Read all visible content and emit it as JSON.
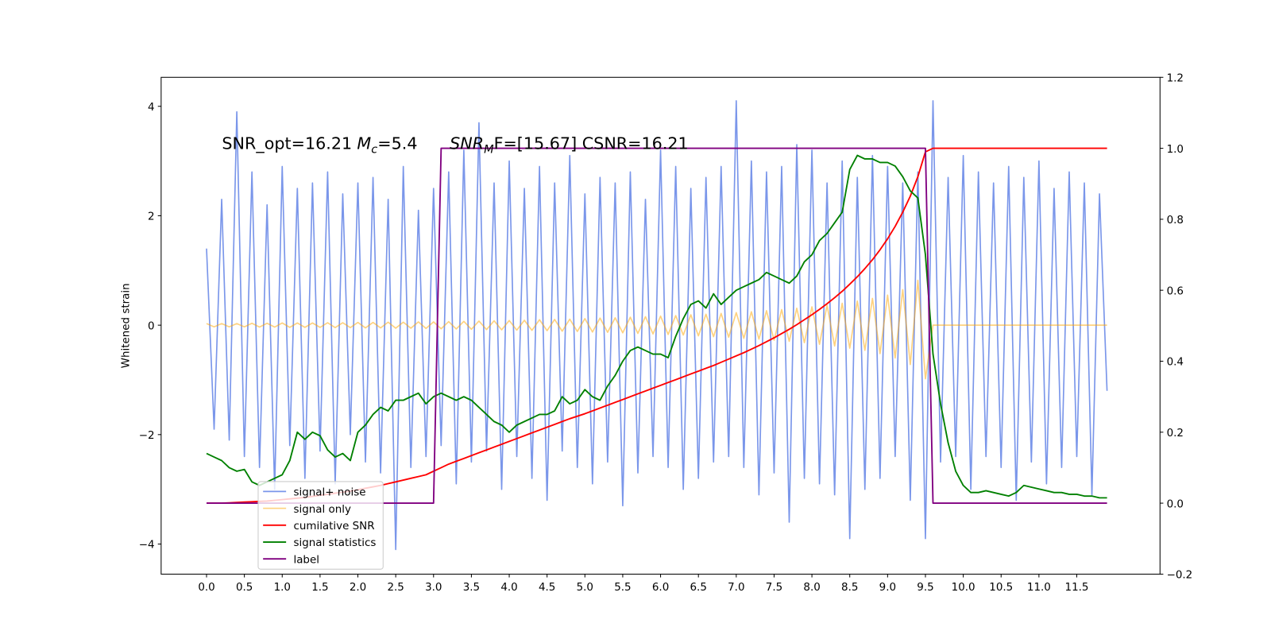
{
  "chart_data": {
    "type": "line",
    "y_label": "Whitened strain",
    "annotations": [
      {
        "parts": [
          "SNR_opt=16.21",
          "M",
          "c",
          "=5.4"
        ]
      },
      {
        "parts": [
          "SNR",
          "M",
          "F=[15.67] CSNR=16.21"
        ]
      }
    ],
    "legend": "lower left",
    "xlim": [
      -0.6,
      12.6
    ],
    "ylim": [
      -4.55,
      4.53
    ],
    "y2lim": [
      -0.2,
      1.2
    ],
    "xticks": [
      {
        "value": 0,
        "label": "0.0"
      },
      0.5,
      {
        "value": 1,
        "label": "1.0"
      },
      1.5,
      {
        "value": 2,
        "label": "2.0"
      },
      2.5,
      {
        "value": 3,
        "label": "3.0"
      },
      3.5,
      {
        "value": 4,
        "label": "4.0"
      },
      4.5,
      {
        "value": 5,
        "label": "5.0"
      },
      5.5,
      {
        "value": 6,
        "label": "6.0"
      },
      6.5,
      {
        "value": 7,
        "label": "7.0"
      },
      7.5,
      {
        "value": 8,
        "label": "8.0"
      },
      8.5,
      {
        "value": 9,
        "label": "9.0"
      },
      9.5,
      {
        "value": 10,
        "label": "10.0"
      },
      10.5,
      {
        "value": 11,
        "label": "11.0"
      },
      11.5
    ],
    "yticks": [
      {
        "value": -4,
        "label": "−4"
      },
      {
        "value": -2,
        "label": "−2"
      },
      0,
      2,
      4
    ],
    "y2ticks": [
      {
        "value": -0.2,
        "label": "−0.2"
      },
      {
        "value": 0,
        "label": "0.0"
      },
      0.2,
      0.4,
      0.6,
      0.8,
      {
        "value": 1,
        "label": "1.0"
      },
      1.2
    ],
    "x": [
      0,
      0.1,
      0.2,
      0.3,
      0.4,
      0.5,
      0.6,
      0.7,
      0.8,
      0.9,
      1,
      1.1,
      1.2,
      1.3,
      1.4,
      1.5,
      1.6,
      1.7,
      1.8,
      1.9,
      2,
      2.1,
      2.2,
      2.3,
      2.4,
      2.5,
      2.6,
      2.7,
      2.8,
      2.9,
      3,
      3.1,
      3.2,
      3.3,
      3.4,
      3.5,
      3.6,
      3.7,
      3.8,
      3.9,
      4,
      4.1,
      4.2,
      4.3,
      4.4,
      4.5,
      4.6,
      4.7,
      4.8,
      4.9,
      5,
      5.1,
      5.2,
      5.3,
      5.4,
      5.5,
      5.6,
      5.7,
      5.8,
      5.9,
      6,
      6.1,
      6.2,
      6.3,
      6.4,
      6.5,
      6.6,
      6.7,
      6.8,
      6.9,
      7,
      7.1,
      7.2,
      7.3,
      7.4,
      7.5,
      7.6,
      7.7,
      7.8,
      7.9,
      8,
      8.1,
      8.2,
      8.3,
      8.4,
      8.5,
      8.6,
      8.7,
      8.8,
      8.9,
      9,
      9.1,
      9.2,
      9.3,
      9.4,
      9.5,
      9.6,
      9.7,
      9.8,
      9.9,
      10,
      10.1,
      10.2,
      10.3,
      10.4,
      10.5,
      10.6,
      10.7,
      10.8,
      10.9,
      11,
      11.1,
      11.2,
      11.3,
      11.4,
      11.5,
      11.6,
      11.7,
      11.8,
      11.9
    ],
    "series": [
      {
        "name": "signal+ noise",
        "color": "#4169e1",
        "opacity": 0.7,
        "width": 1.6,
        "values": [
          1.4,
          -1.9,
          2.3,
          -2.1,
          3.9,
          -2.4,
          2.8,
          -2.6,
          2.2,
          -3.0,
          2.9,
          -2.2,
          2.5,
          -2.8,
          2.6,
          -2.3,
          2.8,
          -2.9,
          2.4,
          -2.0,
          2.6,
          -2.5,
          2.7,
          -2.7,
          2.3,
          -4.1,
          2.9,
          -2.6,
          2.1,
          -2.4,
          2.5,
          -2.2,
          2.8,
          -2.9,
          3.2,
          -2.5,
          3.7,
          -2.3,
          2.6,
          -3.0,
          3.0,
          -2.4,
          2.5,
          -2.8,
          2.9,
          -3.2,
          2.6,
          -2.3,
          3.1,
          -2.6,
          2.4,
          -2.9,
          2.7,
          -2.5,
          2.6,
          -3.3,
          2.8,
          -2.7,
          2.3,
          -2.4,
          3.2,
          -2.6,
          2.9,
          -3.0,
          2.5,
          -2.8,
          2.7,
          -2.5,
          2.9,
          -2.4,
          4.1,
          -2.6,
          3.0,
          -3.1,
          2.8,
          -2.7,
          2.9,
          -3.6,
          3.3,
          -2.8,
          3.2,
          -2.9,
          2.6,
          -3.1,
          3.0,
          -3.9,
          2.7,
          -3.0,
          3.1,
          -2.8,
          2.9,
          -2.4,
          2.6,
          -3.2,
          2.8,
          -3.9,
          4.1,
          -2.5,
          2.7,
          -2.4,
          3.1,
          -3.0,
          2.8,
          -2.4,
          2.6,
          -2.6,
          2.9,
          -3.2,
          2.7,
          -2.5,
          3.0,
          -2.9,
          2.5,
          -2.6,
          2.8,
          -2.4,
          2.6,
          -3.1,
          2.4,
          -1.2
        ]
      },
      {
        "name": "signal only",
        "color": "#ffa500",
        "opacity": 0.5,
        "width": 1.6,
        "values": [
          0.03,
          -0.03,
          0.03,
          -0.03,
          0.03,
          -0.03,
          0.035,
          -0.035,
          0.035,
          -0.035,
          0.04,
          -0.04,
          0.04,
          -0.04,
          0.04,
          -0.04,
          0.045,
          -0.045,
          0.045,
          -0.045,
          0.05,
          -0.05,
          0.05,
          -0.05,
          0.055,
          -0.055,
          0.055,
          -0.055,
          0.06,
          -0.06,
          0.06,
          -0.065,
          0.065,
          -0.07,
          0.07,
          -0.075,
          0.075,
          -0.08,
          0.08,
          -0.085,
          0.085,
          -0.09,
          0.09,
          -0.095,
          0.1,
          -0.1,
          0.105,
          -0.11,
          0.11,
          -0.115,
          0.12,
          -0.125,
          0.13,
          -0.13,
          0.135,
          -0.14,
          0.145,
          -0.15,
          0.155,
          -0.16,
          0.165,
          -0.17,
          0.175,
          -0.18,
          0.19,
          -0.195,
          0.2,
          -0.21,
          0.215,
          -0.22,
          0.23,
          -0.24,
          0.245,
          -0.255,
          0.265,
          -0.275,
          0.285,
          -0.295,
          0.31,
          -0.32,
          0.335,
          -0.35,
          0.365,
          -0.38,
          0.4,
          -0.42,
          0.44,
          -0.46,
          0.49,
          -0.52,
          0.55,
          -0.6,
          0.65,
          -0.72,
          0.82,
          -0.98,
          0,
          0,
          0,
          0,
          0,
          0,
          0,
          0,
          0,
          0,
          0,
          0,
          0,
          0,
          0,
          0,
          0,
          0,
          0,
          0,
          0,
          0,
          0,
          0
        ]
      },
      {
        "name": "cumilative SNR",
        "color": "#ff0000",
        "axis": "y2",
        "opacity": 1,
        "width": 1.8,
        "values": [
          0,
          0,
          0,
          0.001,
          0.002,
          0.003,
          0.004,
          0.005,
          0.006,
          0.008,
          0.01,
          0.012,
          0.014,
          0.016,
          0.019,
          0.022,
          0.025,
          0.028,
          0.031,
          0.034,
          0.038,
          0.042,
          0.046,
          0.05,
          0.055,
          0.06,
          0.065,
          0.07,
          0.075,
          0.08,
          0.09,
          0.1,
          0.11,
          0.118,
          0.126,
          0.134,
          0.142,
          0.15,
          0.158,
          0.166,
          0.174,
          0.182,
          0.19,
          0.198,
          0.206,
          0.214,
          0.222,
          0.23,
          0.238,
          0.245,
          0.252,
          0.26,
          0.268,
          0.276,
          0.284,
          0.292,
          0.3,
          0.308,
          0.316,
          0.324,
          0.332,
          0.34,
          0.348,
          0.356,
          0.364,
          0.372,
          0.38,
          0.388,
          0.397,
          0.406,
          0.415,
          0.424,
          0.434,
          0.444,
          0.455,
          0.466,
          0.478,
          0.49,
          0.503,
          0.517,
          0.531,
          0.546,
          0.562,
          0.579,
          0.597,
          0.617,
          0.638,
          0.661,
          0.686,
          0.714,
          0.745,
          0.78,
          0.82,
          0.865,
          0.92,
          0.99,
          1,
          1,
          1,
          1,
          1,
          1,
          1,
          1,
          1,
          1,
          1,
          1,
          1,
          1,
          1,
          1,
          1,
          1,
          1,
          1,
          1,
          1,
          1,
          1
        ]
      },
      {
        "name": "signal statistics",
        "color": "#008000",
        "axis": "y2",
        "opacity": 1,
        "width": 1.8,
        "values": [
          0.14,
          0.13,
          0.12,
          0.1,
          0.09,
          0.095,
          0.06,
          0.05,
          0.06,
          0.07,
          0.08,
          0.12,
          0.2,
          0.18,
          0.2,
          0.19,
          0.15,
          0.13,
          0.14,
          0.12,
          0.2,
          0.22,
          0.25,
          0.27,
          0.26,
          0.29,
          0.29,
          0.3,
          0.31,
          0.28,
          0.3,
          0.31,
          0.3,
          0.29,
          0.3,
          0.29,
          0.27,
          0.25,
          0.23,
          0.22,
          0.2,
          0.22,
          0.23,
          0.24,
          0.25,
          0.25,
          0.26,
          0.3,
          0.28,
          0.29,
          0.32,
          0.3,
          0.29,
          0.33,
          0.36,
          0.4,
          0.43,
          0.44,
          0.43,
          0.42,
          0.42,
          0.41,
          0.47,
          0.52,
          0.56,
          0.57,
          0.55,
          0.59,
          0.56,
          0.58,
          0.6,
          0.61,
          0.62,
          0.63,
          0.65,
          0.64,
          0.63,
          0.62,
          0.64,
          0.68,
          0.7,
          0.74,
          0.76,
          0.79,
          0.82,
          0.94,
          0.98,
          0.97,
          0.97,
          0.96,
          0.96,
          0.95,
          0.92,
          0.88,
          0.86,
          0.7,
          0.42,
          0.28,
          0.17,
          0.09,
          0.05,
          0.03,
          0.03,
          0.035,
          0.03,
          0.025,
          0.02,
          0.03,
          0.05,
          0.045,
          0.04,
          0.035,
          0.03,
          0.03,
          0.025,
          0.025,
          0.02,
          0.02,
          0.015,
          0.015
        ]
      },
      {
        "name": "label",
        "color": "#800080",
        "axis": "y2",
        "opacity": 1,
        "width": 1.8,
        "values": [
          0,
          0,
          0,
          0,
          0,
          0,
          0,
          0,
          0,
          0,
          0,
          0,
          0,
          0,
          0,
          0,
          0,
          0,
          0,
          0,
          0,
          0,
          0,
          0,
          0,
          0,
          0,
          0,
          0,
          0,
          0,
          1,
          1,
          1,
          1,
          1,
          1,
          1,
          1,
          1,
          1,
          1,
          1,
          1,
          1,
          1,
          1,
          1,
          1,
          1,
          1,
          1,
          1,
          1,
          1,
          1,
          1,
          1,
          1,
          1,
          1,
          1,
          1,
          1,
          1,
          1,
          1,
          1,
          1,
          1,
          1,
          1,
          1,
          1,
          1,
          1,
          1,
          1,
          1,
          1,
          1,
          1,
          1,
          1,
          1,
          1,
          1,
          1,
          1,
          1,
          1,
          1,
          1,
          1,
          1,
          1,
          0,
          0,
          0,
          0,
          0,
          0,
          0,
          0,
          0,
          0,
          0,
          0,
          0,
          0,
          0,
          0,
          0,
          0,
          0,
          0,
          0,
          0,
          0,
          0
        ]
      }
    ]
  }
}
